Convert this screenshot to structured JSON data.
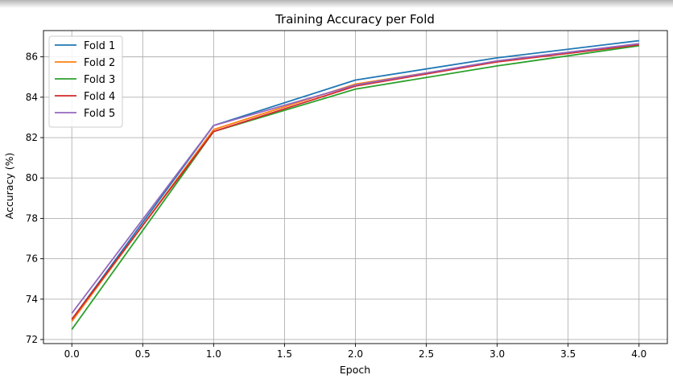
{
  "chart_data": {
    "type": "line",
    "title": "Training Accuracy per Fold",
    "xlabel": "Epoch",
    "ylabel": "Accuracy (%)",
    "xlim": [
      -0.2,
      4.2
    ],
    "ylim": [
      71.8,
      87.3
    ],
    "xticks": [
      0.0,
      0.5,
      1.0,
      1.5,
      2.0,
      2.5,
      3.0,
      3.5,
      4.0
    ],
    "xtick_labels": [
      "0.0",
      "0.5",
      "1.0",
      "1.5",
      "2.0",
      "2.5",
      "3.0",
      "3.5",
      "4.0"
    ],
    "yticks": [
      72,
      74,
      76,
      78,
      80,
      82,
      84,
      86
    ],
    "ytick_labels": [
      "72",
      "74",
      "76",
      "78",
      "80",
      "82",
      "84",
      "86"
    ],
    "grid": true,
    "legend_position": "top-left",
    "x": [
      0,
      1,
      2,
      3,
      4
    ],
    "series": [
      {
        "name": "Fold 1",
        "color": "#1f77b4",
        "values": [
          73.0,
          82.6,
          84.85,
          85.95,
          86.8
        ]
      },
      {
        "name": "Fold 2",
        "color": "#ff7f0e",
        "values": [
          72.9,
          82.4,
          84.65,
          85.75,
          86.6
        ]
      },
      {
        "name": "Fold 3",
        "color": "#2ca02c",
        "values": [
          72.5,
          82.3,
          84.4,
          85.55,
          86.55
        ]
      },
      {
        "name": "Fold 4",
        "color": "#d62728",
        "values": [
          73.0,
          82.3,
          84.55,
          85.75,
          86.6
        ]
      },
      {
        "name": "Fold 5",
        "color": "#9467bd",
        "values": [
          73.3,
          82.6,
          84.6,
          85.8,
          86.65
        ]
      }
    ]
  }
}
